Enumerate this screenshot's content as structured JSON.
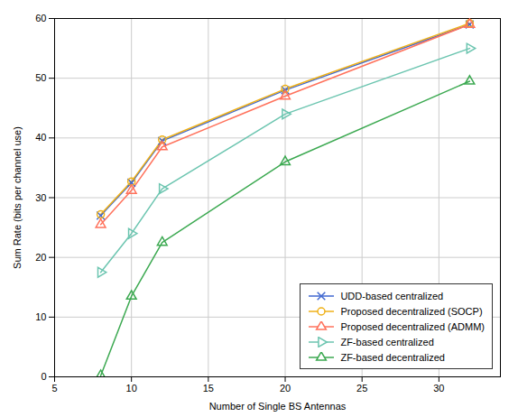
{
  "chart_data": {
    "type": "line",
    "xlabel": "Number of Single BS Antennas",
    "ylabel": "Sum Rate (bits per channel use)",
    "x": [
      8,
      10,
      12,
      20,
      32
    ],
    "series": [
      {
        "name": "UDD-based centralized",
        "values": [
          27.0,
          32.5,
          39.5,
          48.0,
          59.0
        ],
        "marker": "x"
      },
      {
        "name": "Proposed decentralized (SOCP)",
        "values": [
          27.2,
          32.7,
          39.7,
          48.2,
          59.2
        ],
        "marker": "circle"
      },
      {
        "name": "Proposed decentralized (ADMM)",
        "values": [
          25.5,
          31.2,
          38.5,
          47.0,
          59.0
        ],
        "marker": "triangle-up"
      },
      {
        "name": "ZF-based centralized",
        "values": [
          17.5,
          24.0,
          31.5,
          44.0,
          55.0
        ],
        "marker": "triangle-right"
      },
      {
        "name": "ZF-based decentralized",
        "values": [
          0.2,
          13.5,
          22.5,
          36.0,
          49.5
        ],
        "marker": "triangle-up"
      }
    ],
    "xlim": [
      5,
      34
    ],
    "ylim": [
      0,
      60
    ],
    "xticks": [
      5,
      10,
      15,
      20,
      25,
      30
    ],
    "yticks": [
      0,
      10,
      20,
      30,
      40,
      50,
      60
    ],
    "grid": true,
    "legend": "lower right"
  }
}
